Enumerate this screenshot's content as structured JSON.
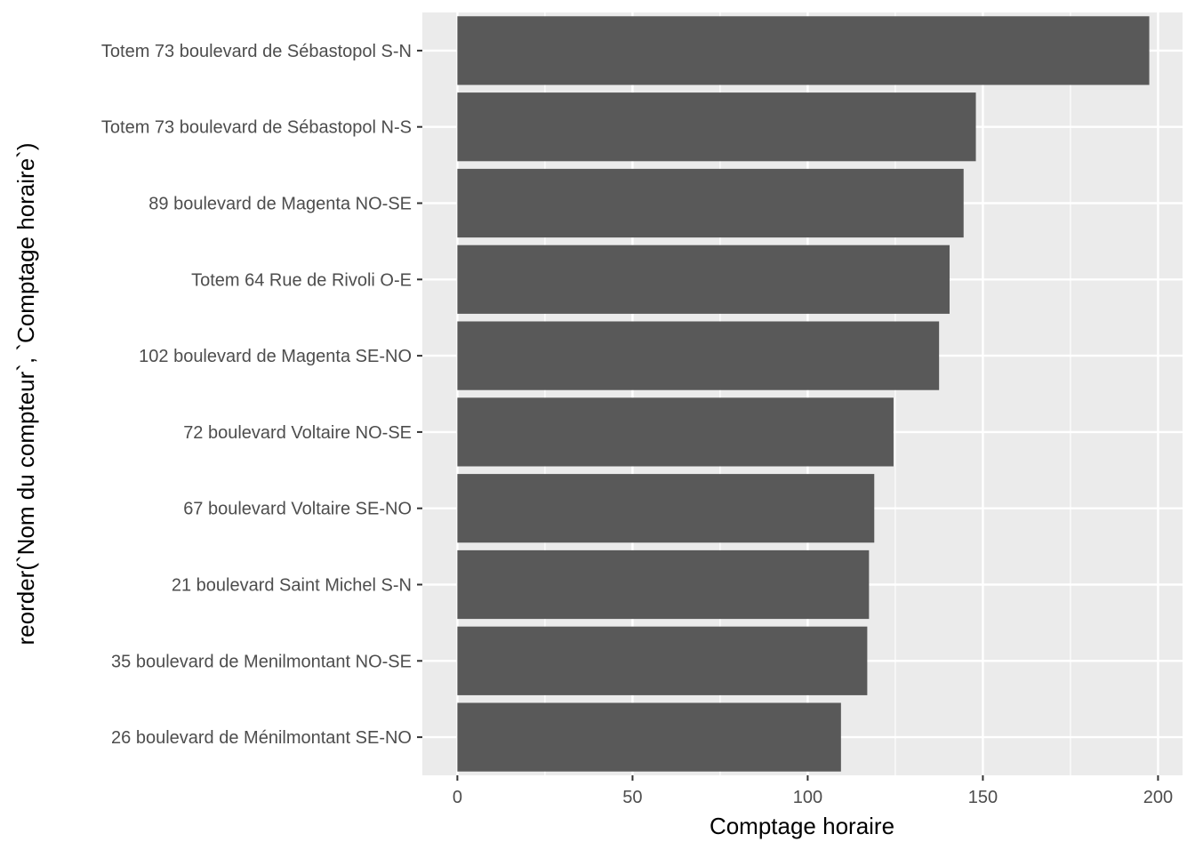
{
  "chart_data": {
    "type": "bar",
    "orientation": "horizontal",
    "categories": [
      "Totem 73 boulevard de Sébastopol S-N",
      "Totem 73 boulevard de Sébastopol N-S",
      "89 boulevard de Magenta NO-SE",
      "Totem 64 Rue de Rivoli O-E",
      "102 boulevard de Magenta SE-NO",
      "72 boulevard Voltaire NO-SE",
      "67 boulevard Voltaire SE-NO",
      "21 boulevard Saint Michel S-N",
      "35 boulevard de Menilmontant NO-SE",
      "26 boulevard de Ménilmontant SE-NO"
    ],
    "values": [
      197.5,
      148,
      144.5,
      140.5,
      137.5,
      124.5,
      119,
      117.5,
      117,
      109.5
    ],
    "xlabel": "Comptage horaire",
    "ylabel": "reorder(`Nom du compteur`, `Comptage horaire`)",
    "xlim": [
      -10,
      207
    ],
    "xticks": [
      0,
      50,
      100,
      150,
      200
    ],
    "xtick_labels": [
      "0",
      "50",
      "100",
      "150",
      "200"
    ],
    "grid": true,
    "colors": {
      "panel_background": "#ebebeb",
      "grid_major": "#ffffff",
      "bar_fill": "#595959",
      "tick_text": "#4d4d4d",
      "tick_mark": "#333333"
    }
  }
}
